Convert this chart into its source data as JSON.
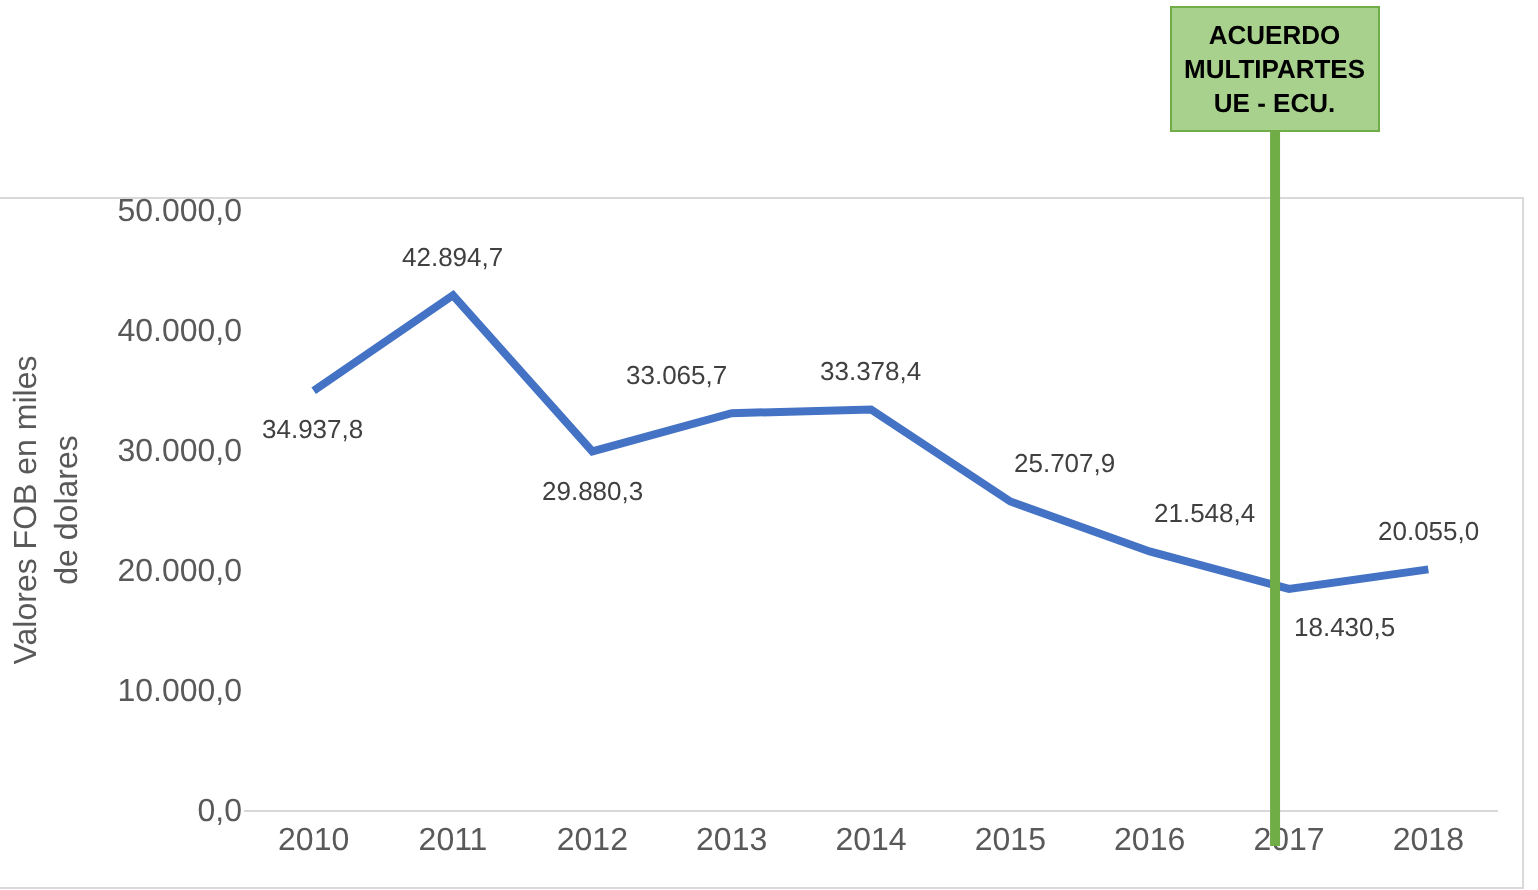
{
  "chart_data": {
    "type": "line",
    "ylabel": "Valores FOB en miles de dolares",
    "x": [
      2010,
      2011,
      2012,
      2013,
      2014,
      2015,
      2016,
      2017,
      2018
    ],
    "xlim": [
      2009.5,
      2018.5
    ],
    "xticks": [
      2010,
      2011,
      2012,
      2013,
      2014,
      2015,
      2016,
      2017,
      2018
    ],
    "series": [
      {
        "color": "#4472c4",
        "values": [
          34937.8,
          42894.7,
          29880.3,
          33065.7,
          33378.4,
          25707.9,
          21548.4,
          18430.5,
          20055.0
        ],
        "value_labels": [
          "34.937,8",
          "42.894,7",
          "29.880,3",
          "33.065,7",
          "33.378,4",
          "25.707,9",
          "21.548,4",
          "18.430,5",
          "20.055,0"
        ]
      }
    ],
    "ylim": [
      0,
      50000
    ],
    "yticks": [
      {
        "value": 0,
        "label": "0,0"
      },
      {
        "value": 10000,
        "label": "10.000,0"
      },
      {
        "value": 20000,
        "label": "20.000,0"
      },
      {
        "value": 30000,
        "label": "30.000,0"
      },
      {
        "value": 40000,
        "label": "40.000,0"
      },
      {
        "value": 50000,
        "label": "50.000,0"
      }
    ],
    "ref_lines": [
      {
        "axis": "x",
        "value": 2016.9,
        "label": "ACUERDO\nMULTIPARTES\nUE - ECU.",
        "color": "#70ad47"
      }
    ],
    "legend": false,
    "marker": "none",
    "line_style": "solid"
  }
}
